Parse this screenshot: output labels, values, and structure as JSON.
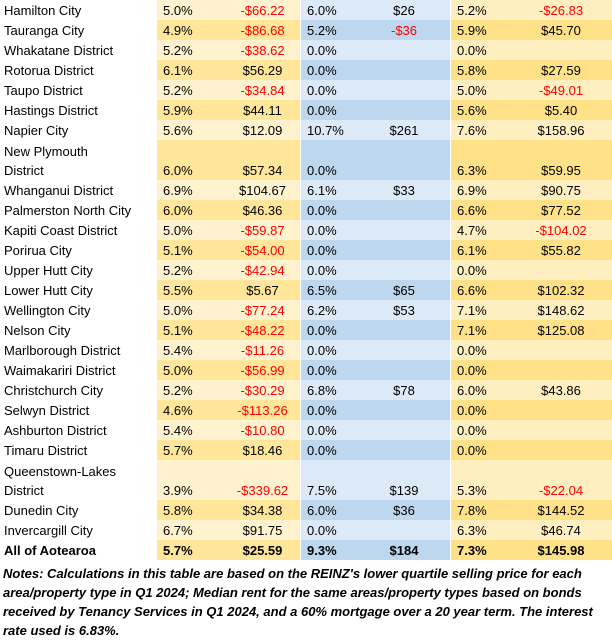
{
  "table": {
    "rows": [
      {
        "name": "Hamilton City",
        "pct1": "5.0%",
        "amt1": "-$66.22",
        "pct2": "6.0%",
        "amt2": "$26",
        "pct3": "5.2%",
        "amt3": "-$26.83"
      },
      {
        "name": "Tauranga City",
        "pct1": "4.9%",
        "amt1": "-$86.68",
        "pct2": "5.2%",
        "amt2": "-$36",
        "pct3": "5.9%",
        "amt3": "$45.70"
      },
      {
        "name": "Whakatane District",
        "pct1": "5.2%",
        "amt1": "-$38.62",
        "pct2": "0.0%",
        "amt2": "",
        "pct3": "0.0%",
        "amt3": ""
      },
      {
        "name": "Rotorua District",
        "pct1": "6.1%",
        "amt1": "$56.29",
        "pct2": "0.0%",
        "amt2": "",
        "pct3": "5.8%",
        "amt3": "$27.59"
      },
      {
        "name": "Taupo District",
        "pct1": "5.2%",
        "amt1": "-$34.84",
        "pct2": "0.0%",
        "amt2": "",
        "pct3": "5.0%",
        "amt3": "-$49.01"
      },
      {
        "name": "Hastings District",
        "pct1": "5.9%",
        "amt1": "$44.11",
        "pct2": "0.0%",
        "amt2": "",
        "pct3": "5.6%",
        "amt3": "$5.40"
      },
      {
        "name": "Napier City",
        "pct1": "5.6%",
        "amt1": "$12.09",
        "pct2": "10.7%",
        "amt2": "$261",
        "pct3": "7.6%",
        "amt3": "$158.96"
      },
      {
        "name": "New Plymouth\nDistrict",
        "tall": true,
        "pct1": "6.0%",
        "amt1": "$57.34",
        "pct2": "0.0%",
        "amt2": "",
        "pct3": "6.3%",
        "amt3": "$59.95"
      },
      {
        "name": "Whanganui District",
        "pct1": "6.9%",
        "amt1": "$104.67",
        "pct2": "6.1%",
        "amt2": "$33",
        "pct3": "6.9%",
        "amt3": "$90.75"
      },
      {
        "name": "Palmerston North City",
        "pct1": "6.0%",
        "amt1": "$46.36",
        "pct2": "0.0%",
        "amt2": "",
        "pct3": "6.6%",
        "amt3": "$77.52"
      },
      {
        "name": "Kapiti Coast District",
        "pct1": "5.0%",
        "amt1": "-$59.87",
        "pct2": "0.0%",
        "amt2": "",
        "pct3": "4.7%",
        "amt3": "-$104.02"
      },
      {
        "name": "Porirua City",
        "pct1": "5.1%",
        "amt1": "-$54.00",
        "pct2": "0.0%",
        "amt2": "",
        "pct3": "6.1%",
        "amt3": "$55.82"
      },
      {
        "name": "Upper Hutt City",
        "pct1": "5.2%",
        "amt1": "-$42.94",
        "pct2": "0.0%",
        "amt2": "",
        "pct3": "0.0%",
        "amt3": ""
      },
      {
        "name": "Lower Hutt City",
        "pct1": "5.5%",
        "amt1": "$5.67",
        "pct2": "6.5%",
        "amt2": "$65",
        "pct3": "6.6%",
        "amt3": "$102.32"
      },
      {
        "name": "Wellington City",
        "pct1": "5.0%",
        "amt1": "-$77.24",
        "pct2": "6.2%",
        "amt2": "$53",
        "pct3": "7.1%",
        "amt3": "$148.62"
      },
      {
        "name": "Nelson City",
        "pct1": "5.1%",
        "amt1": "-$48.22",
        "pct2": "0.0%",
        "amt2": "",
        "pct3": "7.1%",
        "amt3": "$125.08"
      },
      {
        "name": "Marlborough District",
        "pct1": "5.4%",
        "amt1": "-$11.26",
        "pct2": "0.0%",
        "amt2": "",
        "pct3": "0.0%",
        "amt3": ""
      },
      {
        "name": "Waimakariri District",
        "pct1": "5.0%",
        "amt1": "-$56.99",
        "pct2": "0.0%",
        "amt2": "",
        "pct3": "0.0%",
        "amt3": ""
      },
      {
        "name": "Christchurch City",
        "pct1": "5.2%",
        "amt1": "-$30.29",
        "pct2": "6.8%",
        "amt2": "$78",
        "pct3": "6.0%",
        "amt3": "$43.86"
      },
      {
        "name": "Selwyn District",
        "pct1": "4.6%",
        "amt1": "-$113.26",
        "pct2": "0.0%",
        "amt2": "",
        "pct3": "0.0%",
        "amt3": ""
      },
      {
        "name": "Ashburton District",
        "pct1": "5.4%",
        "amt1": "-$10.80",
        "pct2": "0.0%",
        "amt2": "",
        "pct3": "0.0%",
        "amt3": ""
      },
      {
        "name": "Timaru District",
        "pct1": "5.7%",
        "amt1": "$18.46",
        "pct2": "0.0%",
        "amt2": "",
        "pct3": "0.0%",
        "amt3": ""
      },
      {
        "name": "Queenstown-Lakes\nDistrict",
        "tall": true,
        "pct1": "3.9%",
        "amt1": "-$339.62",
        "pct2": "7.5%",
        "amt2": "$139",
        "pct3": "5.3%",
        "amt3": "-$22.04"
      },
      {
        "name": "Dunedin City",
        "pct1": "5.8%",
        "amt1": "$34.38",
        "pct2": "6.0%",
        "amt2": "$36",
        "pct3": "7.8%",
        "amt3": "$144.52"
      },
      {
        "name": "Invercargill City",
        "pct1": "6.7%",
        "amt1": "$91.75",
        "pct2": "0.0%",
        "amt2": "",
        "pct3": "6.3%",
        "amt3": "$46.74"
      },
      {
        "name": "All of Aotearoa",
        "bold": true,
        "pct1": "5.7%",
        "amt1": "$25.59",
        "pct2": "9.3%",
        "amt2": "$184",
        "pct3": "7.3%",
        "amt3": "$145.98"
      }
    ]
  },
  "notes": "Notes: Calculations in this table are based on the REINZ's lower quartile selling price for each area/property type in Q1 2024; Median rent for the same areas/property types based on bonds received by Tenancy Services in Q1 2024, and a 60% mortgage over a 20 year term. The interest rate used is 6.83%.",
  "colors": {
    "band_yellow_left_light": "#FFF3CF",
    "band_yellow_left_dark": "#FFE699",
    "band_blue_light": "#DCE9F6",
    "band_blue_dark": "#BDD7EE",
    "band_yellow_right_light": "#FFEFC0",
    "band_yellow_right_dark": "#FFE288",
    "negative_value": "#FF0000",
    "text": "#000000"
  }
}
